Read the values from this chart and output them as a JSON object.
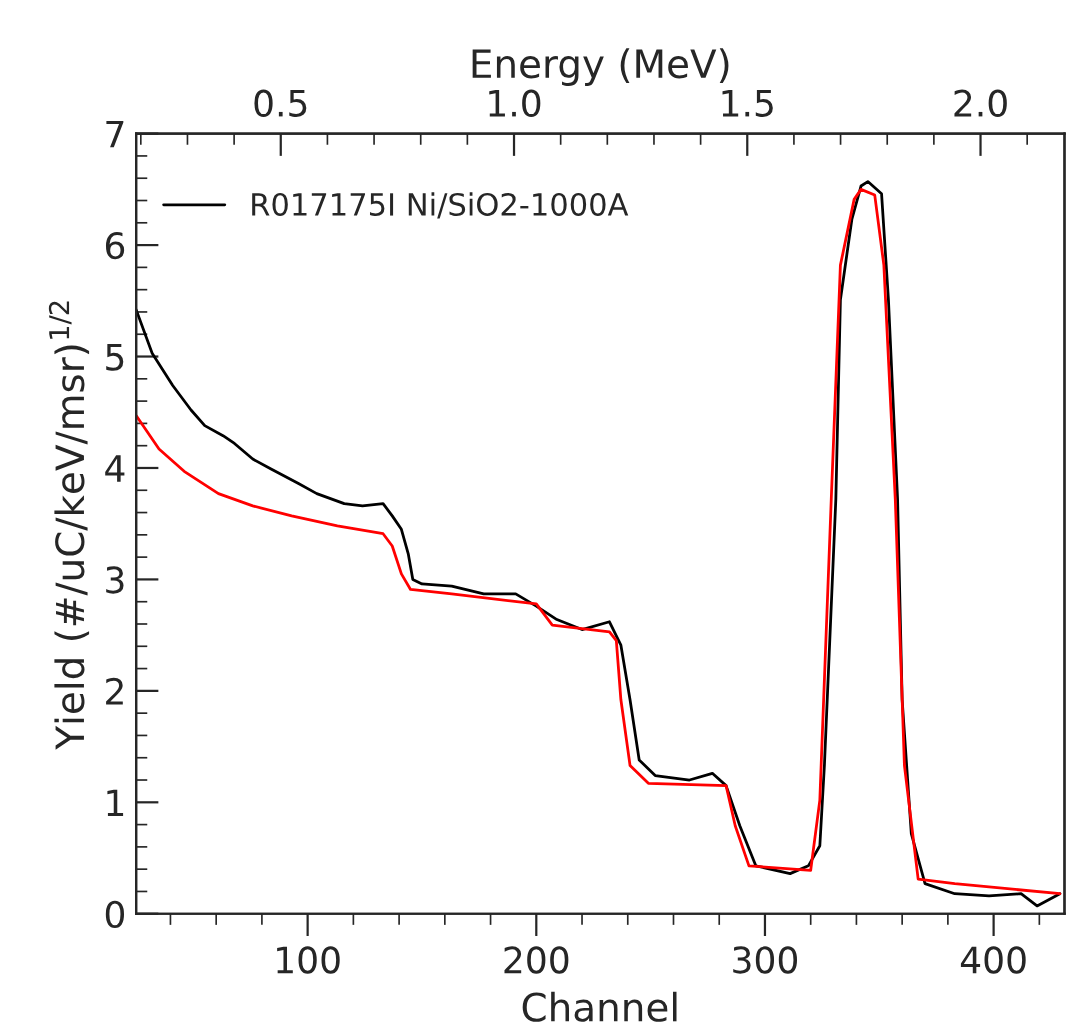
{
  "chart_data": {
    "type": "line",
    "xlabel": "Channel",
    "x2label": "Energy (MeV)",
    "ylabel": "Yield (#/uC/keV/msr)$^{1/2}$",
    "xlim": [
      25,
      431
    ],
    "xticks": [
      100,
      200,
      300,
      400
    ],
    "x2lim": [
      0.19,
      2.18
    ],
    "x2ticks": [
      0.5,
      {
        "value": 1.0,
        "label": "1.0"
      },
      1.5,
      {
        "value": 2.0,
        "label": "2.0"
      }
    ],
    "ylim": [
      0,
      7
    ],
    "yticks": [
      0,
      1,
      2,
      3,
      4,
      5,
      6,
      7
    ],
    "legend": "top left",
    "grid": false,
    "series": [
      {
        "name": "R017175I Ni/SiO2-1000A",
        "color": "#000000",
        "x": [
          25,
          32,
          41,
          49,
          55,
          63,
          68,
          76,
          84,
          96,
          104,
          116,
          124,
          133,
          137,
          141,
          144,
          146,
          150,
          163,
          177,
          191,
          200,
          209,
          220,
          232,
          237,
          241,
          245,
          252,
          267,
          277,
          283,
          289,
          296,
          311,
          319,
          324,
          326,
          331,
          333,
          338,
          342,
          345,
          351,
          354,
          358,
          360,
          364,
          370,
          383,
          398,
          412,
          419,
          429
        ],
        "values": [
          5.42,
          5.03,
          4.74,
          4.52,
          4.38,
          4.29,
          4.22,
          4.08,
          3.99,
          3.86,
          3.77,
          3.68,
          3.66,
          3.68,
          3.57,
          3.45,
          3.23,
          3.0,
          2.96,
          2.94,
          2.87,
          2.87,
          2.76,
          2.64,
          2.55,
          2.62,
          2.41,
          1.92,
          1.38,
          1.24,
          1.2,
          1.26,
          1.15,
          0.79,
          0.43,
          0.36,
          0.43,
          0.61,
          1.33,
          3.72,
          5.51,
          6.23,
          6.53,
          6.57,
          6.46,
          5.51,
          3.72,
          1.92,
          0.72,
          0.27,
          0.18,
          0.16,
          0.18,
          0.07,
          0.18
        ]
      },
      {
        "color": "#ff0000",
        "x": [
          25,
          35,
          46,
          61,
          76,
          93,
          113,
          133,
          137,
          141,
          145,
          163,
          200,
          207,
          232,
          235,
          237,
          241,
          249,
          283,
          287,
          293,
          320,
          324,
          329,
          333,
          339,
          342,
          348,
          352,
          357,
          361,
          367,
          383,
          429
        ],
        "values": [
          4.47,
          4.17,
          3.97,
          3.77,
          3.66,
          3.57,
          3.48,
          3.41,
          3.3,
          3.05,
          2.91,
          2.87,
          2.78,
          2.59,
          2.53,
          2.45,
          1.92,
          1.33,
          1.17,
          1.15,
          0.79,
          0.43,
          0.39,
          1.02,
          3.72,
          5.82,
          6.41,
          6.5,
          6.45,
          5.82,
          3.72,
          1.33,
          0.31,
          0.27,
          0.18
        ]
      }
    ]
  }
}
